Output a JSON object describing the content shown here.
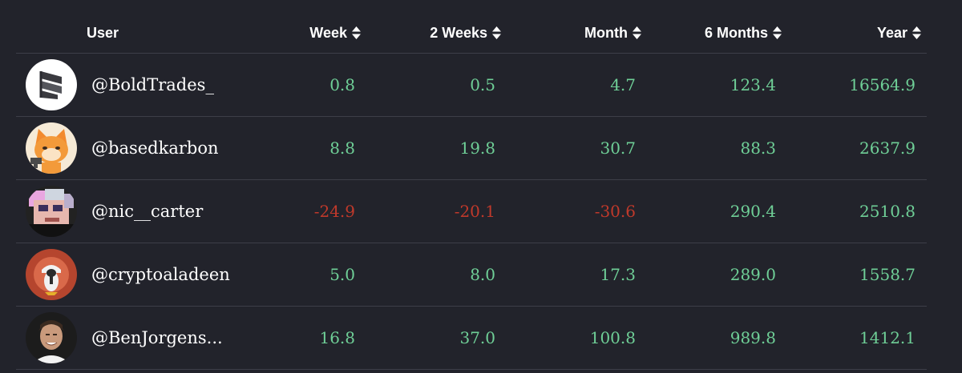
{
  "header": {
    "user": "User",
    "week": "Week",
    "two_weeks": "2 Weeks",
    "month": "Month",
    "six_months": "6 Months",
    "year": "Year",
    "sort_icon": "sort-up-down-icon"
  },
  "colors": {
    "background": "#22232b",
    "divider": "#3d3e48",
    "positive": "#6fcf97",
    "negative": "#c0392b",
    "text": "#ffffff"
  },
  "rows": [
    {
      "user": "@BoldTrades_",
      "avatar": "boldtrades-logo-avatar",
      "week": "0.8",
      "two_weeks": "0.5",
      "month": "4.7",
      "six_months": "123.4",
      "year": "16564.9"
    },
    {
      "user": "@basedkarbon",
      "avatar": "orange-cat-avatar",
      "week": "8.8",
      "two_weeks": "19.8",
      "month": "30.7",
      "six_months": "88.3",
      "year": "2637.9"
    },
    {
      "user": "@nic__carter",
      "avatar": "pixel-face-avatar",
      "week": "-24.9",
      "two_weeks": "-20.1",
      "month": "-30.6",
      "six_months": "290.4",
      "year": "2510.8"
    },
    {
      "user": "@cryptoaladeen",
      "avatar": "penguin-avatar",
      "week": "5.0",
      "two_weeks": "8.0",
      "month": "17.3",
      "six_months": "289.0",
      "year": "1558.7"
    },
    {
      "user": "@BenJorgens...",
      "avatar": "man-photo-avatar",
      "week": "16.8",
      "two_weeks": "37.0",
      "month": "100.8",
      "six_months": "989.8",
      "year": "1412.1"
    }
  ]
}
